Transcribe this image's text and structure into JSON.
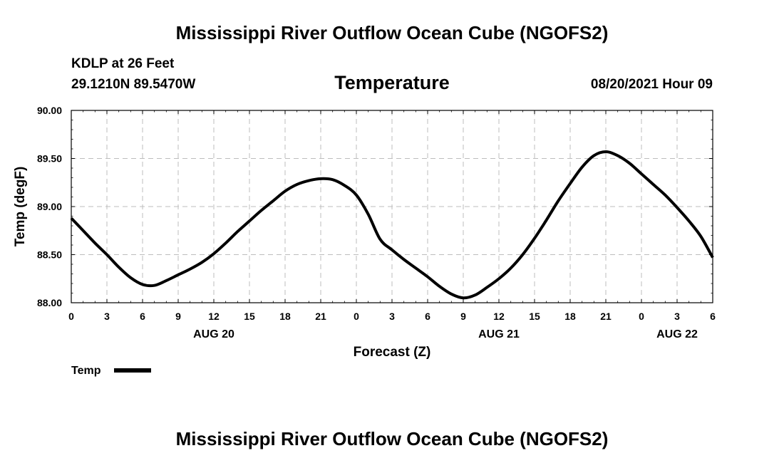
{
  "header": {
    "title": "Mississippi River Outflow Ocean Cube (NGOFS2)",
    "station_label": "KDLP at 26 Feet",
    "coordinates": "29.1210N  89.5470W",
    "valid_time": "08/20/2021 Hour 09"
  },
  "footer": {
    "title": "Mississippi River Outflow Ocean Cube (NGOFS2)"
  },
  "legend": {
    "label": "Temp"
  },
  "chart_data": {
    "type": "line",
    "title": "Temperature",
    "xlabel": "Forecast (Z)",
    "ylabel": "Temp (degF)",
    "x_units": "forecast hours from 08/20/2021 00Z",
    "xlim": [
      0,
      54
    ],
    "ylim": [
      88.0,
      90.0
    ],
    "grid": true,
    "legend_position": "bottom-left",
    "y_ticks": [
      "88.00",
      "88.50",
      "89.00",
      "89.50",
      "90.00"
    ],
    "y_tick_values": [
      88.0,
      88.5,
      89.0,
      89.5,
      90.0
    ],
    "x_ticks": [
      "0",
      "3",
      "6",
      "9",
      "12",
      "15",
      "18",
      "21",
      "0",
      "3",
      "6",
      "9",
      "12",
      "15",
      "18",
      "21",
      "0",
      "3",
      "6"
    ],
    "x_tick_values": [
      0,
      3,
      6,
      9,
      12,
      15,
      18,
      21,
      24,
      27,
      30,
      33,
      36,
      39,
      42,
      45,
      48,
      51,
      54
    ],
    "date_labels": [
      {
        "label": "AUG 20",
        "x": 12
      },
      {
        "label": "AUG 21",
        "x": 36
      },
      {
        "label": "AUG 22",
        "x": 51
      }
    ],
    "series": [
      {
        "name": "Temp",
        "color": "#000000",
        "x": [
          0,
          1,
          2,
          3,
          4,
          5,
          6,
          7,
          8,
          9,
          10,
          11,
          12,
          13,
          14,
          15,
          16,
          17,
          18,
          19,
          20,
          21,
          22,
          23,
          24,
          25,
          26,
          27,
          28,
          29,
          30,
          31,
          32,
          33,
          34,
          35,
          36,
          37,
          38,
          39,
          40,
          41,
          42,
          43,
          44,
          45,
          46,
          47,
          48,
          49,
          50,
          51,
          52,
          53,
          54
        ],
        "values": [
          88.88,
          88.75,
          88.62,
          88.5,
          88.37,
          88.26,
          88.19,
          88.18,
          88.23,
          88.29,
          88.35,
          88.42,
          88.51,
          88.62,
          88.74,
          88.85,
          88.96,
          89.06,
          89.16,
          89.23,
          89.27,
          89.29,
          89.28,
          89.22,
          89.12,
          88.92,
          88.66,
          88.55,
          88.45,
          88.36,
          88.27,
          88.17,
          88.09,
          88.05,
          88.08,
          88.16,
          88.25,
          88.36,
          88.5,
          88.67,
          88.86,
          89.06,
          89.24,
          89.41,
          89.53,
          89.57,
          89.53,
          89.45,
          89.34,
          89.23,
          89.12,
          88.99,
          88.85,
          88.69,
          88.47
        ]
      }
    ]
  }
}
